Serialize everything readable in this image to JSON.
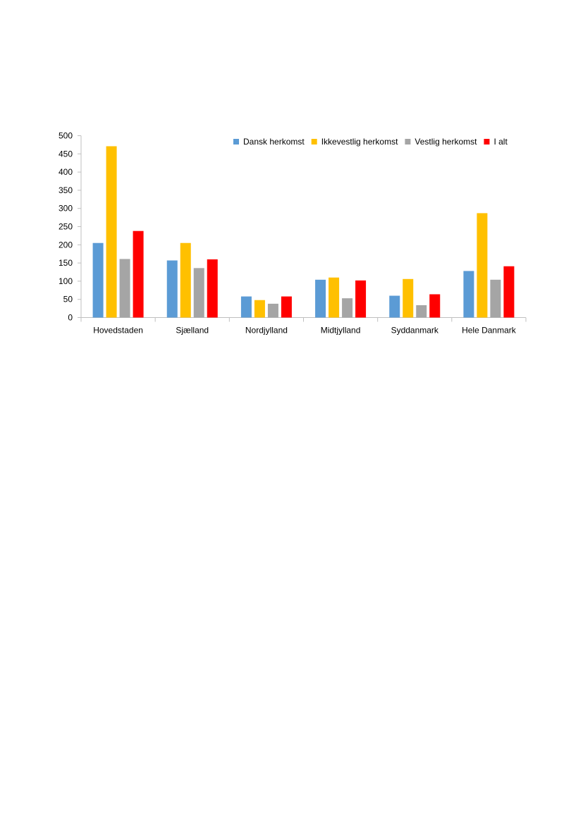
{
  "chart_data": {
    "type": "bar",
    "categories": [
      "Hovedstaden",
      "Sjælland",
      "Nordjylland",
      "Midtjylland",
      "Syddanmark",
      "Hele Danmark"
    ],
    "series": [
      {
        "name": "Dansk herkomst",
        "color": "#5B9BD5",
        "values": [
          205,
          157,
          58,
          104,
          60,
          128
        ]
      },
      {
        "name": "Ikkevestlig herkomst",
        "color": "#FFC000",
        "values": [
          471,
          205,
          48,
          110,
          106,
          287
        ]
      },
      {
        "name": "Vestlig herkomst",
        "color": "#A5A5A5",
        "values": [
          161,
          136,
          38,
          53,
          34,
          104
        ]
      },
      {
        "name": "I alt",
        "color": "#FF0000",
        "values": [
          238,
          160,
          58,
          102,
          64,
          141
        ]
      }
    ],
    "ylim": [
      0,
      500
    ],
    "yticks": [
      0,
      50,
      100,
      150,
      200,
      250,
      300,
      350,
      400,
      450,
      500
    ],
    "grid": false,
    "legend": "top-right",
    "title": "",
    "xlabel": "",
    "ylabel": ""
  }
}
